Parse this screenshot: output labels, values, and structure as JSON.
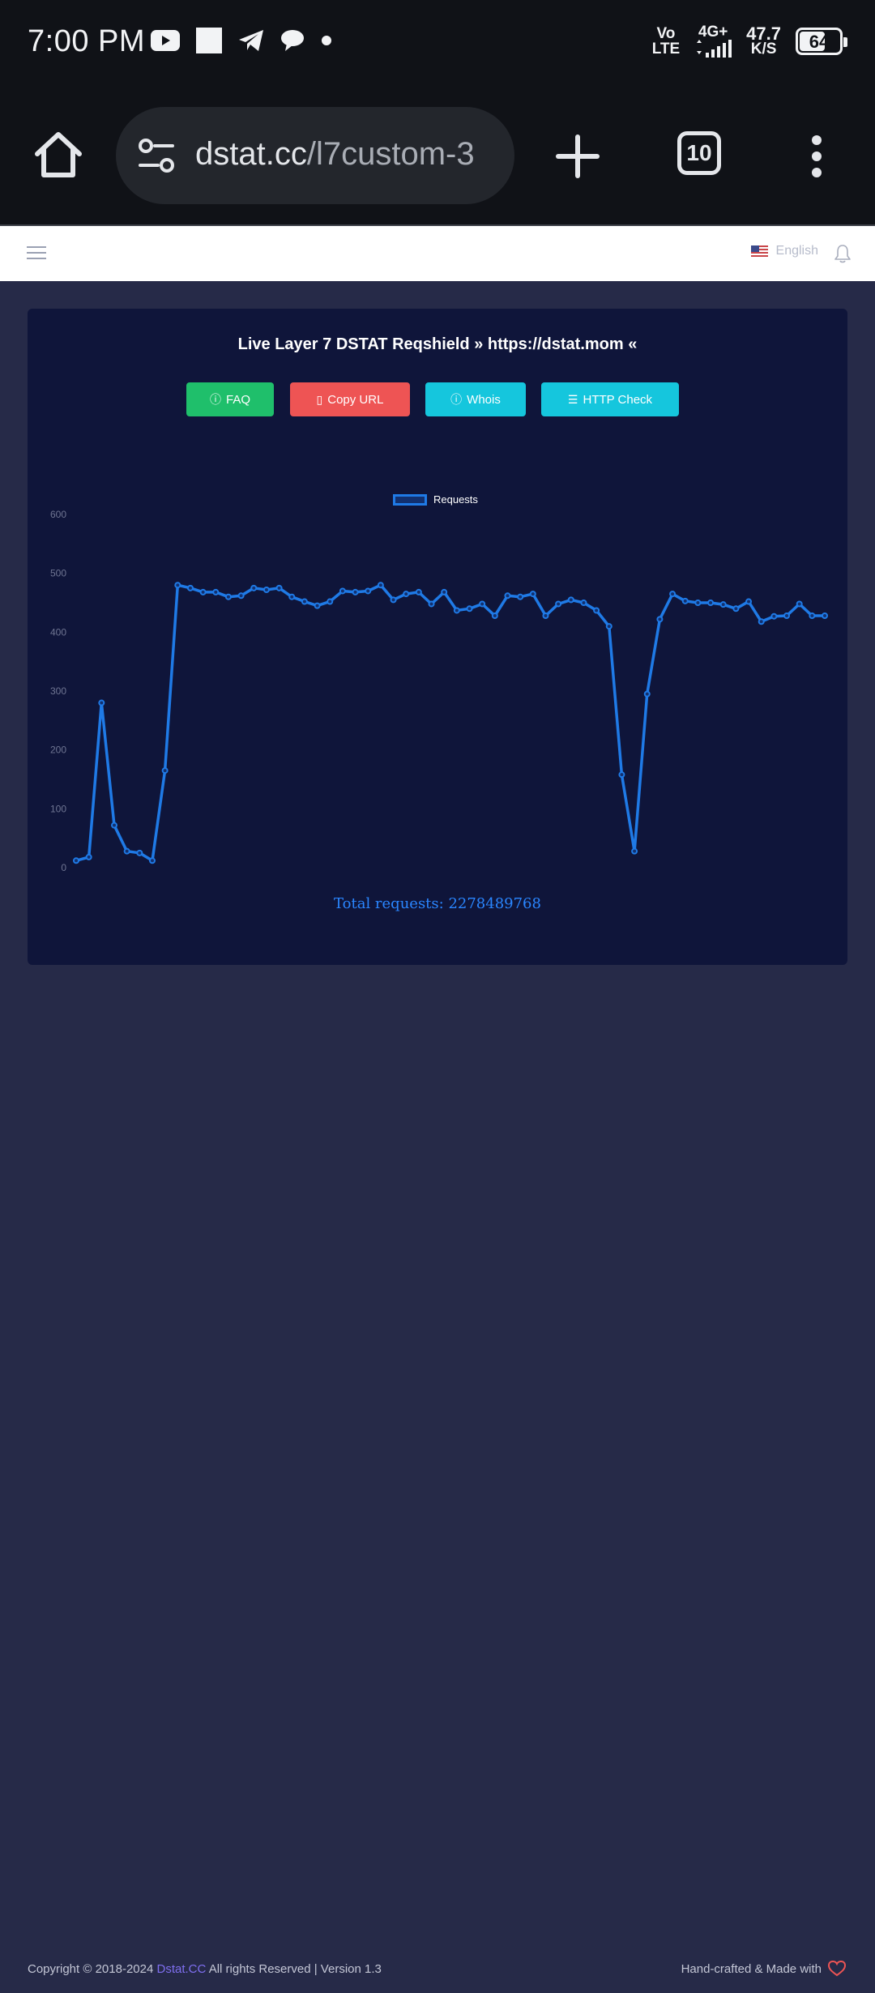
{
  "status_bar": {
    "time": "7:00 PM",
    "network_top": "Vo",
    "network_bottom": "LTE",
    "signal_label": "4G+",
    "speed_value": "47.7",
    "speed_unit": "K/S",
    "battery_level": "64",
    "notification_icons": [
      "youtube-icon",
      "square-icon",
      "telegram-icon",
      "chat-icon",
      "dot-icon"
    ]
  },
  "browser": {
    "url_host": "dstat.cc",
    "url_path": "/l7custom-3",
    "tab_count": "10"
  },
  "site_header": {
    "language": "English"
  },
  "card": {
    "title": "Live Layer 7 DSTAT Reqshield » https://dstat.mom «",
    "buttons": {
      "faq": "FAQ",
      "copy_url": "Copy URL",
      "whois": "Whois",
      "http_check": "HTTP Check"
    },
    "total_label": "Total requests: 2278489768"
  },
  "chart_data": {
    "type": "line",
    "legend": [
      "Requests"
    ],
    "legend_position": "top",
    "ylim": [
      0,
      600
    ],
    "yticks": [
      0,
      100,
      200,
      300,
      400,
      500,
      600
    ],
    "grid": false,
    "series": [
      {
        "name": "Requests",
        "color": "#1f7ae6",
        "values": [
          12,
          18,
          280,
          72,
          28,
          25,
          12,
          165,
          480,
          475,
          468,
          468,
          460,
          462,
          475,
          472,
          475,
          460,
          452,
          445,
          452,
          470,
          468,
          470,
          480,
          455,
          465,
          468,
          448,
          468,
          437,
          440,
          448,
          428,
          462,
          460,
          465,
          428,
          448,
          455,
          450,
          437,
          410,
          158,
          28,
          295,
          422,
          465,
          453,
          450,
          450,
          447,
          440,
          452,
          418,
          427,
          428,
          448,
          428,
          428
        ]
      }
    ]
  },
  "footer": {
    "copyright_prefix": "Copyright © 2018-2024",
    "brand": "Dstat.CC",
    "copyright_suffix": "All rights Reserved | Version 1.3",
    "made_with": "Hand-crafted & Made with"
  }
}
